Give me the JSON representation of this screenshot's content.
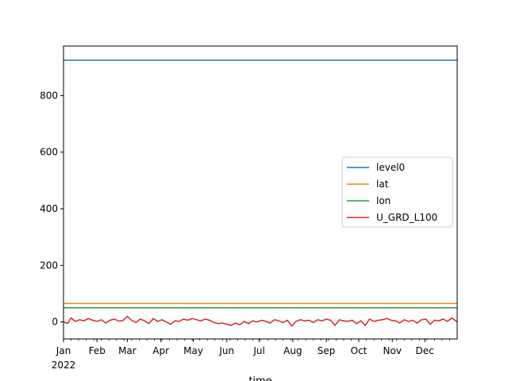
{
  "chart_data": {
    "type": "line",
    "xlabel": "time",
    "ylabel": "",
    "title": "",
    "x_ticks": [
      {
        "label": "Jan",
        "sub": "2022",
        "date": "2022-01-01"
      },
      {
        "label": "Feb",
        "date": "2022-02-01"
      },
      {
        "label": "Mar",
        "date": "2022-03-01"
      },
      {
        "label": "Apr",
        "date": "2022-04-01"
      },
      {
        "label": "May",
        "date": "2022-05-01"
      },
      {
        "label": "Jun",
        "date": "2022-06-01"
      },
      {
        "label": "Jul",
        "date": "2022-07-01"
      },
      {
        "label": "Aug",
        "date": "2022-08-01"
      },
      {
        "label": "Sep",
        "date": "2022-09-01"
      },
      {
        "label": "Oct",
        "date": "2022-10-01"
      },
      {
        "label": "Nov",
        "date": "2022-11-01"
      },
      {
        "label": "Dec",
        "date": "2022-12-01"
      }
    ],
    "xlim": [
      "2022-01-01",
      "2022-12-31"
    ],
    "y_ticks": [
      0,
      200,
      400,
      600,
      800
    ],
    "ylim": [
      -60,
      975
    ],
    "grid": false,
    "legend_position": "center-right",
    "series": [
      {
        "name": "level0",
        "color": "#1f77b4",
        "x": [
          "2022-01-01",
          "2022-12-31"
        ],
        "y": [
          925,
          925
        ]
      },
      {
        "name": "lat",
        "color": "#ff7f0e",
        "x": [
          "2022-01-01",
          "2022-12-31"
        ],
        "y": [
          65,
          65
        ]
      },
      {
        "name": "lon",
        "color": "#2ca02c",
        "x": [
          "2022-01-01",
          "2022-12-31"
        ],
        "y": [
          50,
          50
        ]
      },
      {
        "name": "U_GRD_L100",
        "color": "#d62728",
        "x": [
          "2022-01-01",
          "2022-01-05",
          "2022-01-08",
          "2022-01-12",
          "2022-01-16",
          "2022-01-20",
          "2022-01-24",
          "2022-01-28",
          "2022-02-01",
          "2022-02-05",
          "2022-02-09",
          "2022-02-13",
          "2022-02-17",
          "2022-02-21",
          "2022-02-25",
          "2022-03-01",
          "2022-03-05",
          "2022-03-09",
          "2022-03-13",
          "2022-03-17",
          "2022-03-21",
          "2022-03-25",
          "2022-03-29",
          "2022-04-02",
          "2022-04-06",
          "2022-04-10",
          "2022-04-14",
          "2022-04-18",
          "2022-04-22",
          "2022-04-26",
          "2022-04-30",
          "2022-05-04",
          "2022-05-08",
          "2022-05-12",
          "2022-05-16",
          "2022-05-20",
          "2022-05-24",
          "2022-05-28",
          "2022-06-01",
          "2022-06-05",
          "2022-06-09",
          "2022-06-13",
          "2022-06-17",
          "2022-06-21",
          "2022-06-25",
          "2022-06-29",
          "2022-07-03",
          "2022-07-07",
          "2022-07-11",
          "2022-07-15",
          "2022-07-19",
          "2022-07-23",
          "2022-07-27",
          "2022-07-31",
          "2022-08-04",
          "2022-08-08",
          "2022-08-12",
          "2022-08-16",
          "2022-08-20",
          "2022-08-24",
          "2022-08-28",
          "2022-09-01",
          "2022-09-05",
          "2022-09-09",
          "2022-09-13",
          "2022-09-17",
          "2022-09-21",
          "2022-09-25",
          "2022-09-29",
          "2022-10-03",
          "2022-10-07",
          "2022-10-11",
          "2022-10-15",
          "2022-10-19",
          "2022-10-23",
          "2022-10-27",
          "2022-10-31",
          "2022-11-04",
          "2022-11-08",
          "2022-11-12",
          "2022-11-16",
          "2022-11-20",
          "2022-11-24",
          "2022-11-28",
          "2022-12-02",
          "2022-12-06",
          "2022-12-10",
          "2022-12-14",
          "2022-12-18",
          "2022-12-22",
          "2022-12-26",
          "2022-12-31"
        ],
        "y": [
          0,
          -5,
          14,
          2,
          8,
          4,
          12,
          6,
          2,
          8,
          -4,
          6,
          10,
          3,
          5,
          20,
          6,
          -2,
          10,
          4,
          -6,
          12,
          2,
          8,
          0,
          -8,
          4,
          2,
          10,
          6,
          12,
          8,
          4,
          10,
          6,
          -2,
          -6,
          -4,
          -8,
          -12,
          -4,
          -10,
          2,
          -6,
          4,
          0,
          6,
          2,
          -4,
          8,
          4,
          -2,
          6,
          -14,
          2,
          8,
          4,
          6,
          -2,
          8,
          4,
          10,
          6,
          -12,
          8,
          4,
          2,
          6,
          -6,
          4,
          -12,
          10,
          2,
          6,
          8,
          12,
          6,
          4,
          -4,
          8,
          2,
          6,
          -4,
          8,
          10,
          -8,
          6,
          4,
          10,
          2,
          14,
          0
        ]
      }
    ]
  }
}
